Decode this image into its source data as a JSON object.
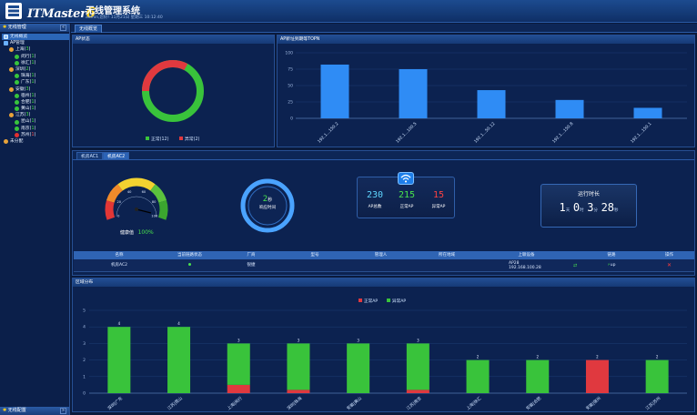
{
  "header": {
    "brand_prefix": "ITMaster",
    "brand_num": "6",
    "title": "无线管理系统",
    "user_line": "admin,您好! 11月21日 星期三 10:12:40"
  },
  "sidebar": {
    "title": "无线管理",
    "footer": "无线配置",
    "tree": [
      {
        "label": "无线概览",
        "icon": "monitor-icon",
        "indent": 1,
        "count": "",
        "count_color": "",
        "selected": true
      },
      {
        "label": "AP管理",
        "icon": "network-icon",
        "indent": 1,
        "count": "",
        "count_color": "",
        "selected": false
      },
      {
        "label": "上海(",
        "icon": "group-icon",
        "indent": 2,
        "count": "3",
        "count_color": "g",
        "suffix": ")"
      },
      {
        "label": "闵行(",
        "icon": "ap-online-icon",
        "indent": 3,
        "count": "1",
        "count_color": "g",
        "suffix": ")"
      },
      {
        "label": "徐汇(",
        "icon": "ap-online-icon",
        "indent": 3,
        "count": "1",
        "count_color": "g",
        "suffix": ")"
      },
      {
        "label": "深圳(",
        "icon": "group-icon",
        "indent": 2,
        "count": "2",
        "count_color": "g",
        "suffix": ")"
      },
      {
        "label": "珠海(",
        "icon": "ap-online-icon",
        "indent": 3,
        "count": "1",
        "count_color": "g",
        "suffix": ")"
      },
      {
        "label": "广东(",
        "icon": "ap-online-icon",
        "indent": 3,
        "count": "1",
        "count_color": "g",
        "suffix": ")"
      },
      {
        "label": "安徽(",
        "icon": "group-icon",
        "indent": 2,
        "count": "3",
        "count_color": "g",
        "suffix": ")"
      },
      {
        "label": "宿州(",
        "icon": "ap-online-icon",
        "indent": 3,
        "count": "1",
        "count_color": "g",
        "suffix": ")"
      },
      {
        "label": "合肥(",
        "icon": "ap-online-icon",
        "indent": 3,
        "count": "1",
        "count_color": "g",
        "suffix": ")"
      },
      {
        "label": "黄山(",
        "icon": "ap-online-icon",
        "indent": 3,
        "count": "1",
        "count_color": "g",
        "suffix": ")"
      },
      {
        "label": "江苏(",
        "icon": "group-icon",
        "indent": 2,
        "count": "3",
        "count_color": "g",
        "suffix": ")"
      },
      {
        "label": "昆山(",
        "icon": "ap-online-icon",
        "indent": 3,
        "count": "1",
        "count_color": "g",
        "suffix": ")"
      },
      {
        "label": "南京(",
        "icon": "ap-online-icon",
        "indent": 3,
        "count": "1",
        "count_color": "g",
        "suffix": ")"
      },
      {
        "label": "苏州(",
        "icon": "ap-offline-icon",
        "indent": 3,
        "count": "1",
        "count_color": "r",
        "suffix": ")"
      },
      {
        "label": "未分配",
        "icon": "folder-icon",
        "indent": 1,
        "count": "",
        "count_color": "",
        "selected": false
      }
    ]
  },
  "tabs": {
    "main": "无线概览"
  },
  "status_panel": {
    "title": "AP状态",
    "online_label": "正常(12)",
    "offline_label": "异常(2)",
    "online": 12,
    "offline": 2,
    "colors": {
      "online": "#39c33b",
      "offline": "#e0393f"
    }
  },
  "top_panel": {
    "title": "AP新址到期等TOPN",
    "chart_data": {
      "type": "bar",
      "categories": [
        "192.1...150.2",
        "192.1...100.5",
        "192.1...50.12",
        "192.1...150.8",
        "192.1...150.1"
      ],
      "values": [
        82,
        75,
        43,
        28,
        16
      ],
      "ylim": [
        0,
        100
      ],
      "yticks": [
        0,
        25,
        50,
        75,
        100
      ],
      "title": "",
      "xlabel": "",
      "ylabel": ""
    }
  },
  "ac_panel": {
    "subtabs": [
      "机房AC1",
      "机房AC2"
    ],
    "active_subtab": 1,
    "gauge": {
      "label": "健康值",
      "value": "100%",
      "ticks": [
        "0",
        "20",
        "40",
        "60",
        "80",
        "100"
      ]
    },
    "ring": {
      "value": "2",
      "unit": "秒",
      "label": "响应时间"
    },
    "stats": [
      {
        "num": "230",
        "label": "AP总数",
        "color": "#5fd6ff"
      },
      {
        "num": "215",
        "label": "正常AP",
        "color": "#49e34d"
      },
      {
        "num": "15",
        "label": "异常AP",
        "color": "#ff4242"
      }
    ],
    "runtime": {
      "title": "运行时长",
      "d": "1",
      "d_unit": "天",
      "h": "0",
      "h_unit": "时",
      "m": "3",
      "m_unit": "分",
      "s": "28",
      "s_unit": "秒"
    },
    "table": {
      "headers": [
        "名称",
        "当前链路状态",
        "厂商",
        "型号",
        "管理人",
        "所在地域",
        "上联设备",
        "链路",
        "操作"
      ],
      "row": [
        "机房AC2",
        "",
        "锐捷",
        "",
        "",
        "",
        "AP28",
        "",
        "up",
        ""
      ],
      "row_ip": "192.168.100.28"
    }
  },
  "area_panel": {
    "title": "区域分布",
    "chart_data": {
      "type": "bar",
      "stacked": true,
      "categories": [
        "深圳|广东",
        "江苏|昆山",
        "上海|闵行",
        "深圳|珠海",
        "安徽|黄山",
        "江苏|南京",
        "上海|徐汇",
        "安徽|合肥",
        "安徽|宿州",
        "江苏|苏州"
      ],
      "series": [
        {
          "name": "正常AP",
          "values": [
            0,
            0,
            0.5,
            0.2,
            0,
            0.2,
            0,
            0,
            2,
            0
          ]
        },
        {
          "name": "异常AP",
          "values": [
            4,
            4,
            2.5,
            2.8,
            3,
            2.8,
            2,
            2,
            0,
            2
          ]
        }
      ],
      "totals": [
        "4",
        "4",
        "3",
        "3",
        "3",
        "3",
        "2",
        "2",
        "2",
        "2"
      ],
      "ylim": [
        0,
        5
      ],
      "yticks": [
        0,
        1,
        2,
        3,
        4,
        5
      ],
      "legend_position": "top",
      "colors": {
        "正常AP": "#e0393f",
        "异常AP": "#39c33b"
      },
      "title": "",
      "xlabel": "",
      "ylabel": ""
    }
  }
}
